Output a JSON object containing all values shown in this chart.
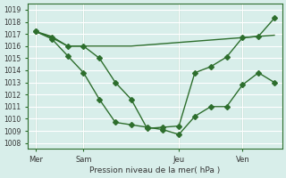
{
  "title": "",
  "xlabel": "Pression niveau de la mer( hPa )",
  "ylabel": "",
  "background_color": "#d8eeea",
  "plot_bg_color": "#d8eeea",
  "grid_color": "#ffffff",
  "line_color": "#2d6e2d",
  "ylim": [
    1007.5,
    1019.5
  ],
  "yticks": [
    1008,
    1009,
    1010,
    1011,
    1012,
    1013,
    1014,
    1015,
    1016,
    1017,
    1018,
    1019
  ],
  "day_labels": [
    "Mer",
    "Sam",
    "Jeu",
    "Ven"
  ],
  "day_positions": [
    0,
    3,
    9,
    13
  ],
  "series1_x": [
    0,
    1,
    2,
    3,
    4,
    5,
    6,
    7,
    8,
    9,
    10,
    11,
    12,
    13,
    14,
    15
  ],
  "series1_y": [
    1017.2,
    1016.8,
    1016.0,
    1016.0,
    1016.0,
    1016.0,
    1016.0,
    1016.1,
    1016.2,
    1016.3,
    1016.4,
    1016.5,
    1016.6,
    1016.7,
    1016.8,
    1016.9
  ],
  "series2_x": [
    0,
    1,
    2,
    3,
    4,
    5,
    6,
    7,
    8,
    9,
    10,
    11,
    12,
    13,
    14,
    15
  ],
  "series2_y": [
    1017.2,
    1016.6,
    1015.2,
    1013.8,
    1011.6,
    1009.7,
    1009.5,
    1009.3,
    1009.1,
    1008.7,
    1010.2,
    1011.0,
    1011.0,
    1012.8,
    1013.8,
    1013.0
  ],
  "series3_x": [
    0,
    1,
    2,
    3,
    4,
    5,
    6,
    7,
    8,
    9,
    10,
    11,
    12,
    13,
    14,
    15
  ],
  "series3_y": [
    1017.2,
    1016.7,
    1016.0,
    1016.0,
    1015.0,
    1013.0,
    1011.6,
    1009.2,
    1009.3,
    1009.4,
    1013.8,
    1014.3,
    1015.1,
    1016.7,
    1016.8,
    1018.3
  ]
}
